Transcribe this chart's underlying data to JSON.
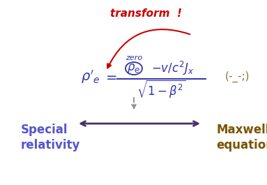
{
  "bg_color": "#ffffff",
  "transform_text": "transform  !",
  "transform_color": "#cc0000",
  "transform_fontsize": 11,
  "formula_color": "#3333aa",
  "formula_fontsize": 14,
  "zero_text": "zero",
  "zero_color": "#3333aa",
  "zero_fontsize": 8,
  "emoticon_text": "(-_-;)",
  "emoticon_color": "#887733",
  "emoticon_fontsize": 11,
  "special_rel_text": "Special\nrelativity",
  "special_rel_color": "#5555cc",
  "special_rel_fontsize": 12,
  "maxwell_text": "Maxwell\nequation",
  "maxwell_color": "#7a5500",
  "maxwell_fontsize": 12,
  "arrow_color": "#443366",
  "dashed_arrow_color": "#888888"
}
